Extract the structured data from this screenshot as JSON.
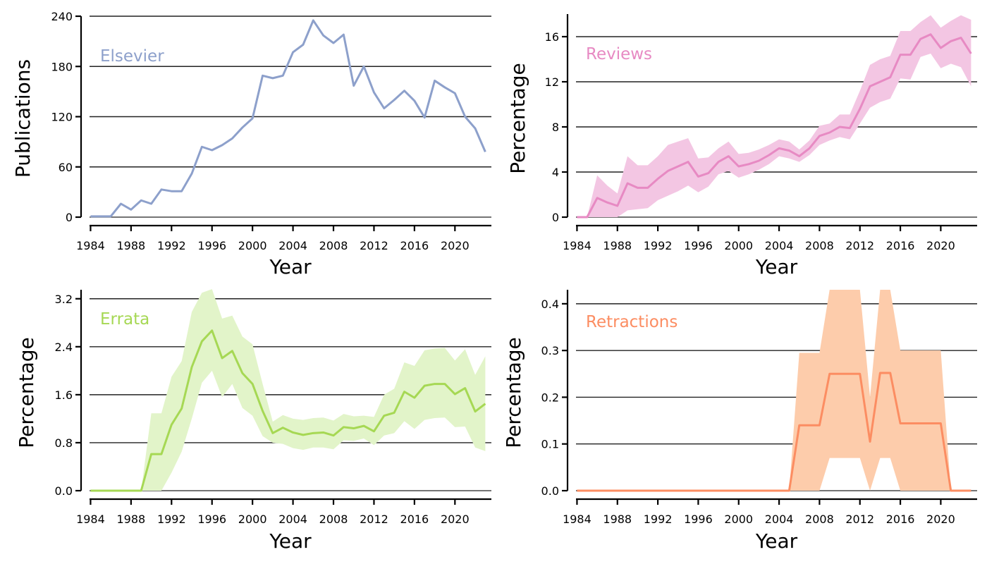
{
  "chart_data": [
    {
      "type": "line",
      "title": "Elsevier",
      "xlabel": "Year",
      "ylabel": "Publications",
      "color": "#8da0cb",
      "band_color": "",
      "xlim": [
        1983.9,
        2023.6
      ],
      "ylim": [
        0,
        240
      ],
      "yticks": [
        0,
        60,
        120,
        180,
        240
      ],
      "ytick_labels": [
        "0",
        "60",
        "120",
        "180",
        "240"
      ],
      "xticks": [
        1984,
        1988,
        1992,
        1996,
        2000,
        2004,
        2008,
        2012,
        2016,
        2020
      ],
      "xtick_labels": [
        "1984",
        "1988",
        "1992",
        "1996",
        "2000",
        "2004",
        "2008",
        "2012",
        "2016",
        "2020"
      ],
      "x": [
        1984,
        1985,
        1986,
        1987,
        1988,
        1989,
        1990,
        1991,
        1992,
        1993,
        1994,
        1995,
        1996,
        1997,
        1998,
        1999,
        2000,
        2001,
        2002,
        2003,
        2004,
        2005,
        2006,
        2007,
        2008,
        2009,
        2010,
        2011,
        2012,
        2013,
        2014,
        2015,
        2016,
        2017,
        2018,
        2019,
        2020,
        2021,
        2022,
        2023
      ],
      "y": [
        1,
        1,
        1,
        16,
        9,
        20,
        16,
        33,
        31,
        31,
        52,
        84,
        80,
        86,
        94,
        107,
        118,
        169,
        166,
        169,
        197,
        206,
        235,
        217,
        208,
        218,
        157,
        180,
        149,
        130,
        140,
        151,
        139,
        119,
        163,
        155,
        148,
        120,
        106,
        78
      ],
      "lower": [],
      "upper": []
    },
    {
      "type": "line",
      "title": "Reviews",
      "xlabel": "Year",
      "ylabel": "Percentage",
      "color": "#e78ac3",
      "band_color": "#f3c6e3",
      "xlim": [
        1983.9,
        2023.6
      ],
      "ylim": [
        0,
        18
      ],
      "yticks": [
        0,
        4,
        8,
        12,
        16
      ],
      "ytick_labels": [
        "0",
        "4",
        "8",
        "12",
        "16"
      ],
      "xticks": [
        1984,
        1988,
        1992,
        1996,
        2000,
        2004,
        2008,
        2012,
        2016,
        2020
      ],
      "xtick_labels": [
        "1984",
        "1988",
        "1992",
        "1996",
        "2000",
        "2004",
        "2008",
        "2012",
        "2016",
        "2020"
      ],
      "x": [
        1984,
        1985,
        1986,
        1987,
        1988,
        1989,
        1990,
        1991,
        1992,
        1993,
        1994,
        1995,
        1996,
        1997,
        1998,
        1999,
        2000,
        2001,
        2002,
        2003,
        2004,
        2005,
        2006,
        2007,
        2008,
        2009,
        2010,
        2011,
        2012,
        2013,
        2014,
        2015,
        2016,
        2017,
        2018,
        2019,
        2020,
        2021,
        2022,
        2023
      ],
      "y": [
        0,
        0,
        1.7,
        1.3,
        1.0,
        3.0,
        2.6,
        2.6,
        3.4,
        4.1,
        4.5,
        4.9,
        3.6,
        3.9,
        4.9,
        5.4,
        4.5,
        4.7,
        5.0,
        5.5,
        6.1,
        5.9,
        5.4,
        6.1,
        7.2,
        7.5,
        8.0,
        7.9,
        9.6,
        11.6,
        12.0,
        12.4,
        14.4,
        14.4,
        15.8,
        16.2,
        15.0,
        15.6,
        15.9,
        14.5
      ],
      "lower": [
        0,
        0,
        0,
        0,
        0,
        0.6,
        0.7,
        0.8,
        1.5,
        1.9,
        2.3,
        2.8,
        2.2,
        2.7,
        3.8,
        4.1,
        3.5,
        3.8,
        4.2,
        4.7,
        5.4,
        5.2,
        4.9,
        5.5,
        6.4,
        6.8,
        7.1,
        6.9,
        8.3,
        9.7,
        10.2,
        10.5,
        12.3,
        12.2,
        14.2,
        14.5,
        13.2,
        13.6,
        13.3,
        11.6
      ],
      "upper": [
        0,
        0,
        3.7,
        2.8,
        2.1,
        5.4,
        4.6,
        4.6,
        5.4,
        6.4,
        6.7,
        7.0,
        5.2,
        5.3,
        6.1,
        6.7,
        5.6,
        5.7,
        6.0,
        6.4,
        6.9,
        6.7,
        6.0,
        6.8,
        8.1,
        8.3,
        9.1,
        9.1,
        11.2,
        13.5,
        14.0,
        14.3,
        16.5,
        16.5,
        17.3,
        17.9,
        16.8,
        17.4,
        17.9,
        17.5
      ]
    },
    {
      "type": "line",
      "title": "Errata",
      "xlabel": "Year",
      "ylabel": "Percentage",
      "color": "#a6d854",
      "band_color": "#e2f4c9",
      "xlim": [
        1983.9,
        2023.6
      ],
      "ylim": [
        0,
        3.35
      ],
      "yticks": [
        0.0,
        0.8,
        1.6,
        2.4,
        3.2
      ],
      "ytick_labels": [
        "0.0",
        "0.8",
        "1.6",
        "2.4",
        "3.2"
      ],
      "xticks": [
        1984,
        1988,
        1992,
        1996,
        2000,
        2004,
        2008,
        2012,
        2016,
        2020
      ],
      "xtick_labels": [
        "1984",
        "1988",
        "1992",
        "1996",
        "2000",
        "2004",
        "2008",
        "2012",
        "2016",
        "2020"
      ],
      "x": [
        1984,
        1985,
        1986,
        1987,
        1988,
        1989,
        1990,
        1991,
        1992,
        1993,
        1994,
        1995,
        1996,
        1997,
        1998,
        1999,
        2000,
        2001,
        2002,
        2003,
        2004,
        2005,
        2006,
        2007,
        2008,
        2009,
        2010,
        2011,
        2012,
        2013,
        2014,
        2015,
        2016,
        2017,
        2018,
        2019,
        2020,
        2021,
        2022,
        2023
      ],
      "y": [
        0,
        0,
        0,
        0,
        0,
        0,
        0.61,
        0.61,
        1.1,
        1.37,
        2.06,
        2.49,
        2.67,
        2.21,
        2.33,
        1.96,
        1.78,
        1.33,
        0.96,
        1.05,
        0.97,
        0.93,
        0.96,
        0.97,
        0.92,
        1.06,
        1.04,
        1.08,
        0.99,
        1.25,
        1.3,
        1.65,
        1.55,
        1.75,
        1.78,
        1.78,
        1.61,
        1.71,
        1.32,
        1.45
      ],
      "lower": [
        0,
        0,
        0,
        0,
        0,
        0,
        0,
        0,
        0.3,
        0.65,
        1.2,
        1.8,
        2.0,
        1.56,
        1.78,
        1.38,
        1.25,
        0.91,
        0.8,
        0.78,
        0.71,
        0.68,
        0.72,
        0.72,
        0.69,
        0.84,
        0.83,
        0.87,
        0.76,
        0.92,
        0.96,
        1.16,
        1.03,
        1.18,
        1.21,
        1.22,
        1.06,
        1.07,
        0.72,
        0.66
      ],
      "upper": [
        0,
        0,
        0,
        0,
        0,
        0,
        1.29,
        1.29,
        1.9,
        2.16,
        2.98,
        3.3,
        3.36,
        2.87,
        2.92,
        2.57,
        2.44,
        1.78,
        1.15,
        1.26,
        1.2,
        1.18,
        1.21,
        1.22,
        1.17,
        1.28,
        1.24,
        1.25,
        1.23,
        1.6,
        1.7,
        2.14,
        2.08,
        2.34,
        2.37,
        2.38,
        2.17,
        2.36,
        1.93,
        2.24
      ]
    },
    {
      "type": "line",
      "title": "Retractions",
      "xlabel": "Year",
      "ylabel": "Percentage",
      "color": "#fc8d62",
      "band_color": "#fdccab",
      "xlim": [
        1983.9,
        2023.6
      ],
      "ylim": [
        0,
        0.43
      ],
      "yticks": [
        0.0,
        0.1,
        0.2,
        0.3,
        0.4
      ],
      "ytick_labels": [
        "0.0",
        "0.1",
        "0.2",
        "0.3",
        "0.4"
      ],
      "xticks": [
        1984,
        1988,
        1992,
        1996,
        2000,
        2004,
        2008,
        2012,
        2016,
        2020
      ],
      "xtick_labels": [
        "1984",
        "1988",
        "1992",
        "1996",
        "2000",
        "2004",
        "2008",
        "2012",
        "2016",
        "2020"
      ],
      "x": [
        1984,
        1985,
        1986,
        1987,
        1988,
        1989,
        1990,
        1991,
        1992,
        1993,
        1994,
        1995,
        1996,
        1997,
        1998,
        1999,
        2000,
        2001,
        2002,
        2003,
        2004,
        2005,
        2006,
        2007,
        2008,
        2009,
        2010,
        2011,
        2012,
        2013,
        2014,
        2015,
        2016,
        2017,
        2018,
        2019,
        2020,
        2021,
        2022,
        2023
      ],
      "y": [
        0,
        0,
        0,
        0,
        0,
        0,
        0,
        0,
        0,
        0,
        0,
        0,
        0,
        0,
        0,
        0,
        0,
        0,
        0,
        0,
        0,
        0,
        0.14,
        0.14,
        0.14,
        0.25,
        0.25,
        0.25,
        0.25,
        0.105,
        0.252,
        0.252,
        0.144,
        0.144,
        0.144,
        0.144,
        0.144,
        0,
        0,
        0
      ],
      "lower": [
        0,
        0,
        0,
        0,
        0,
        0,
        0,
        0,
        0,
        0,
        0,
        0,
        0,
        0,
        0,
        0,
        0,
        0,
        0,
        0,
        0,
        0,
        0,
        0,
        0,
        0.07,
        0.07,
        0.07,
        0.07,
        0,
        0.07,
        0.07,
        0,
        0,
        0,
        0,
        0,
        0,
        0,
        0
      ],
      "upper": [
        0,
        0,
        0,
        0,
        0,
        0,
        0,
        0,
        0,
        0,
        0,
        0,
        0,
        0,
        0,
        0,
        0,
        0,
        0,
        0,
        0,
        0,
        0.295,
        0.295,
        0.295,
        0.43,
        0.43,
        0.43,
        0.43,
        0.2,
        0.43,
        0.43,
        0.3,
        0.3,
        0.3,
        0.3,
        0.3,
        0,
        0,
        0
      ]
    }
  ]
}
